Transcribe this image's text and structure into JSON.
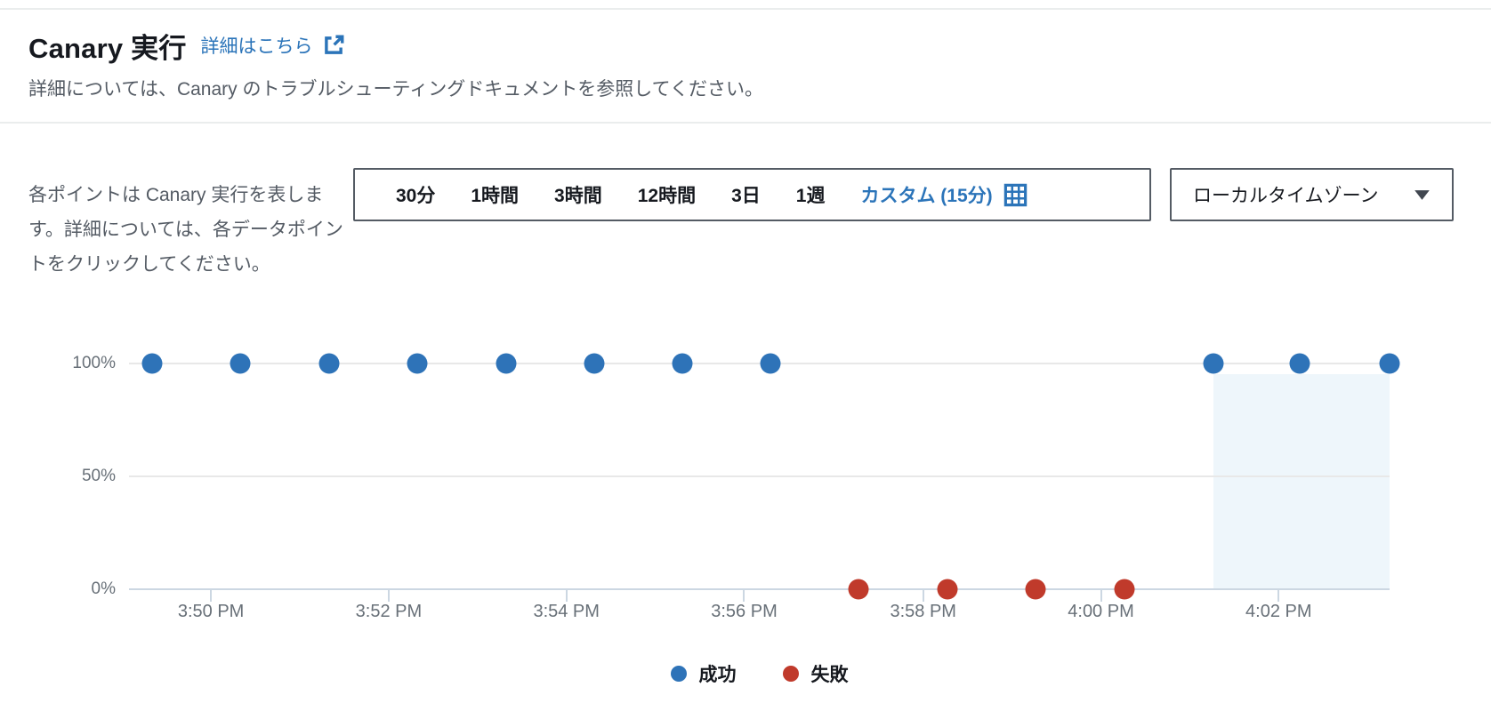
{
  "header": {
    "title": "Canary 実行",
    "link_label": "詳細はこちら",
    "subtitle": "詳細については、Canary のトラブルシューティングドキュメントを参照してください。"
  },
  "intro_text": "各ポイントは Canary 実行を表します。詳細については、各データポイントをクリックしてください。",
  "time_range": {
    "options": [
      "30分",
      "1時間",
      "3時間",
      "12時間",
      "3日",
      "1週"
    ],
    "custom_label": "カスタム (15分)",
    "custom_selected": true
  },
  "timezone_select": {
    "value": "ローカルタイムゾーン"
  },
  "colors": {
    "success": "#2e73b8",
    "failure": "#c03a2b",
    "link_accent": "#2b74b9",
    "grid": "#e8e8e8",
    "axis": "#ccd7e2",
    "selection_fill": "#eef6fb"
  },
  "chart_data": {
    "type": "scatter",
    "title": "",
    "xlabel": "",
    "ylabel": "",
    "ylim": [
      0,
      100
    ],
    "grid": true,
    "legend_position": "bottom-center",
    "y_ticks": [
      {
        "label": "100%",
        "y_pct": 0
      },
      {
        "label": "50%",
        "y_pct": 50
      },
      {
        "label": "0%",
        "y_pct": 100
      }
    ],
    "x_ticks": [
      {
        "label": "3:50 PM",
        "x_pct": 6.5
      },
      {
        "label": "3:52 PM",
        "x_pct": 20.6
      },
      {
        "label": "3:54 PM",
        "x_pct": 34.7
      },
      {
        "label": "3:56 PM",
        "x_pct": 48.8
      },
      {
        "label": "3:58 PM",
        "x_pct": 63.0
      },
      {
        "label": "4:00 PM",
        "x_pct": 77.1
      },
      {
        "label": "4:02 PM",
        "x_pct": 91.2
      }
    ],
    "series": [
      {
        "name": "成功",
        "key": "success",
        "color": "#2e73b8",
        "points": [
          {
            "time": "3:49 PM",
            "value": 100,
            "x_pct": 1.8
          },
          {
            "time": "3:50 PM",
            "value": 100,
            "x_pct": 8.8
          },
          {
            "time": "3:51 PM",
            "value": 100,
            "x_pct": 15.9
          },
          {
            "time": "3:52 PM",
            "value": 100,
            "x_pct": 22.9
          },
          {
            "time": "3:53 PM",
            "value": 100,
            "x_pct": 29.9
          },
          {
            "time": "3:54 PM",
            "value": 100,
            "x_pct": 36.9
          },
          {
            "time": "3:55 PM",
            "value": 100,
            "x_pct": 43.9
          },
          {
            "time": "3:56 PM",
            "value": 100,
            "x_pct": 50.9
          },
          {
            "time": "4:01 PM",
            "value": 100,
            "x_pct": 86.0
          },
          {
            "time": "4:02 PM",
            "value": 100,
            "x_pct": 92.9
          },
          {
            "time": "4:03 PM",
            "value": 100,
            "x_pct": 100.0
          }
        ]
      },
      {
        "name": "失敗",
        "key": "failure",
        "color": "#c03a2b",
        "points": [
          {
            "time": "3:57 PM",
            "value": 0,
            "x_pct": 57.9
          },
          {
            "time": "3:58 PM",
            "value": 0,
            "x_pct": 64.9
          },
          {
            "time": "3:59 PM",
            "value": 0,
            "x_pct": 71.9
          },
          {
            "time": "4:00 PM",
            "value": 0,
            "x_pct": 79.0
          }
        ]
      }
    ],
    "selection_region": {
      "from_pct": 86.0,
      "to_pct": 100,
      "fill": "#eef6fb"
    }
  }
}
